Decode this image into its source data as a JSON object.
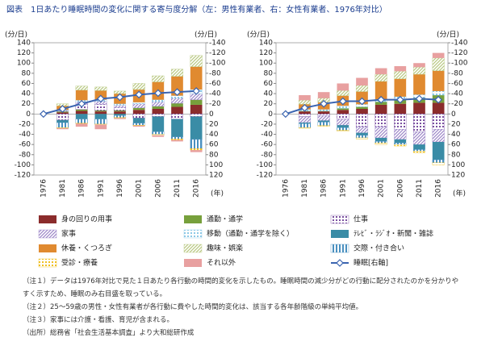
{
  "title": "図表　1日あたり睡眠時間の変化に関する寄与度分解（左：男性有業者、右：女性有業者、1976年対比）",
  "chart_data": [
    {
      "type": "bar",
      "ylabel": "(分/日)",
      "y2label": "(分/日)",
      "xlabel": "(年)",
      "categories": [
        "1976",
        "1981",
        "1986",
        "1991",
        "1996",
        "2001",
        "2006",
        "2011",
        "2016"
      ],
      "ylim": [
        -120,
        140
      ],
      "yticks": [
        -120,
        -100,
        -80,
        -60,
        -40,
        -20,
        0,
        20,
        40,
        60,
        80,
        100,
        120,
        140
      ],
      "y2lim": [
        120,
        -140
      ],
      "y2ticks": [
        120,
        100,
        80,
        60,
        40,
        20,
        0,
        -20,
        -40,
        -60,
        -80,
        -100,
        -120,
        -140
      ],
      "grid": false,
      "series": [
        {
          "name": "身の回りの用事",
          "color": "#8b2c2c",
          "values": [
            0,
            3,
            6,
            5,
            5,
            8,
            10,
            14,
            18
          ]
        },
        {
          "name": "通勤・通学",
          "color": "#77a03c",
          "values": [
            0,
            2,
            3,
            2,
            2,
            4,
            5,
            7,
            10
          ]
        },
        {
          "name": "仕事",
          "color": "#7a4fa0",
          "pattern": "dots",
          "values": [
            0,
            -12,
            10,
            12,
            5,
            -8,
            -5,
            -10,
            -5
          ]
        },
        {
          "name": "家事",
          "color": "#9c86c8",
          "pattern": "diag",
          "values": [
            0,
            2,
            5,
            6,
            5,
            8,
            9,
            10,
            12
          ]
        },
        {
          "name": "移動（通勤・通学を除く）",
          "color": "#8cc8e6",
          "pattern": "dots",
          "values": [
            0,
            1,
            3,
            3,
            3,
            3,
            4,
            5,
            8
          ]
        },
        {
          "name": "ﾃﾚﾋﾞ・ﾗｼﾞｵ・新聞・雑誌",
          "color": "#3a8ca6",
          "values": [
            0,
            -5,
            -10,
            -10,
            -3,
            -10,
            -30,
            -35,
            -45
          ]
        },
        {
          "name": "休養・くつろぎ",
          "color": "#e08a30",
          "values": [
            0,
            8,
            20,
            18,
            20,
            25,
            35,
            38,
            45
          ]
        },
        {
          "name": "趣味・娯楽",
          "color": "#b8c880",
          "pattern": "diag",
          "values": [
            0,
            4,
            8,
            7,
            5,
            12,
            12,
            14,
            22
          ]
        },
        {
          "name": "交際・付き合い",
          "color": "#4a90c0",
          "pattern": "vlines",
          "values": [
            0,
            -10,
            -8,
            -10,
            -4,
            -4,
            -5,
            -4,
            -18
          ]
        },
        {
          "name": "受診・療養",
          "color": "#f0c020",
          "pattern": "dots",
          "values": [
            0,
            -1,
            -1,
            -1,
            -1,
            -1,
            -2,
            -2,
            -3
          ]
        },
        {
          "name": "それ以外",
          "color": "#e8a0a0",
          "values": [
            0,
            -2,
            -6,
            -9,
            -2,
            -2,
            -3,
            -3,
            -4
          ]
        },
        {
          "name": "睡眠[右軸]",
          "color": "#3a64b0",
          "type": "line",
          "axis": "y2",
          "marker": "diamond",
          "values": [
            0,
            -10,
            -20,
            -30,
            -33,
            -38,
            -41,
            -43,
            -45
          ]
        }
      ]
    },
    {
      "type": "bar",
      "ylabel": "(分/日)",
      "y2label": "(分/日)",
      "xlabel": "(年)",
      "categories": [
        "1976",
        "1981",
        "1986",
        "1991",
        "1996",
        "2001",
        "2006",
        "2011",
        "2016"
      ],
      "ylim": [
        -120,
        140
      ],
      "yticks": [
        -120,
        -100,
        -80,
        -60,
        -40,
        -20,
        0,
        20,
        40,
        60,
        80,
        100,
        120,
        140
      ],
      "y2lim": [
        120,
        -140
      ],
      "y2ticks": [
        120,
        100,
        80,
        60,
        40,
        20,
        0,
        -20,
        -40,
        -60,
        -80,
        -100,
        -120,
        -140
      ],
      "grid": false,
      "series": [
        {
          "color": "#8b2c2c",
          "values": [
            0,
            5,
            5,
            8,
            10,
            18,
            20,
            22,
            22
          ]
        },
        {
          "color": "#77a03c",
          "values": [
            0,
            1,
            1,
            3,
            4,
            6,
            8,
            10,
            15
          ]
        },
        {
          "color": "#7a4fa0",
          "pattern": "dots",
          "values": [
            0,
            -5,
            -3,
            -10,
            -25,
            -25,
            -30,
            -35,
            -30
          ]
        },
        {
          "color": "#9c86c8",
          "pattern": "diag",
          "values": [
            0,
            -12,
            -10,
            -12,
            -12,
            -22,
            -20,
            -25,
            -25
          ]
        },
        {
          "color": "#8cc8e6",
          "pattern": "dots",
          "values": [
            0,
            3,
            3,
            5,
            5,
            5,
            6,
            6,
            8
          ]
        },
        {
          "color": "#3a8ca6",
          "values": [
            0,
            -2,
            -3,
            -5,
            -5,
            -7,
            -7,
            -10,
            -35
          ]
        },
        {
          "color": "#e08a30",
          "values": [
            0,
            10,
            14,
            20,
            25,
            35,
            35,
            40,
            40
          ]
        },
        {
          "color": "#b8c880",
          "pattern": "diag",
          "values": [
            0,
            8,
            8,
            10,
            12,
            14,
            15,
            14,
            25
          ]
        },
        {
          "color": "#4a90c0",
          "pattern": "vlines",
          "values": [
            0,
            -8,
            -7,
            -5,
            -5,
            -3,
            -3,
            -3,
            -6
          ]
        },
        {
          "color": "#f0c020",
          "pattern": "dots",
          "values": [
            0,
            -1,
            -1,
            -2,
            -2,
            -3,
            -3,
            -3,
            -4
          ]
        },
        {
          "color": "#e8a0a0",
          "values": [
            0,
            10,
            12,
            14,
            15,
            12,
            10,
            8,
            10
          ]
        },
        {
          "color": "#3a64b0",
          "type": "line",
          "axis": "y2",
          "marker": "diamond",
          "values": [
            0,
            -12,
            -20,
            -25,
            -25,
            -28,
            -28,
            -30,
            -28
          ]
        }
      ]
    }
  ],
  "notes": [
    "（注１）データは1976年対比で見た１日あたり各行動の時間的変化を示したもの。睡眠時間の減少分がどの行動に配分されたのかを分かりやすく示すため、睡眠のみ右目盛を取っている。",
    "（注２）25～59歳の男性・女性有業者が各行動に費やした時間的変化は、該当する各年齢階級の単純平均値。",
    "（注３）家事には介護・看護、育児が含まれる。",
    "（出所）総務省「社会生活基本調査」より大和総研作成"
  ]
}
